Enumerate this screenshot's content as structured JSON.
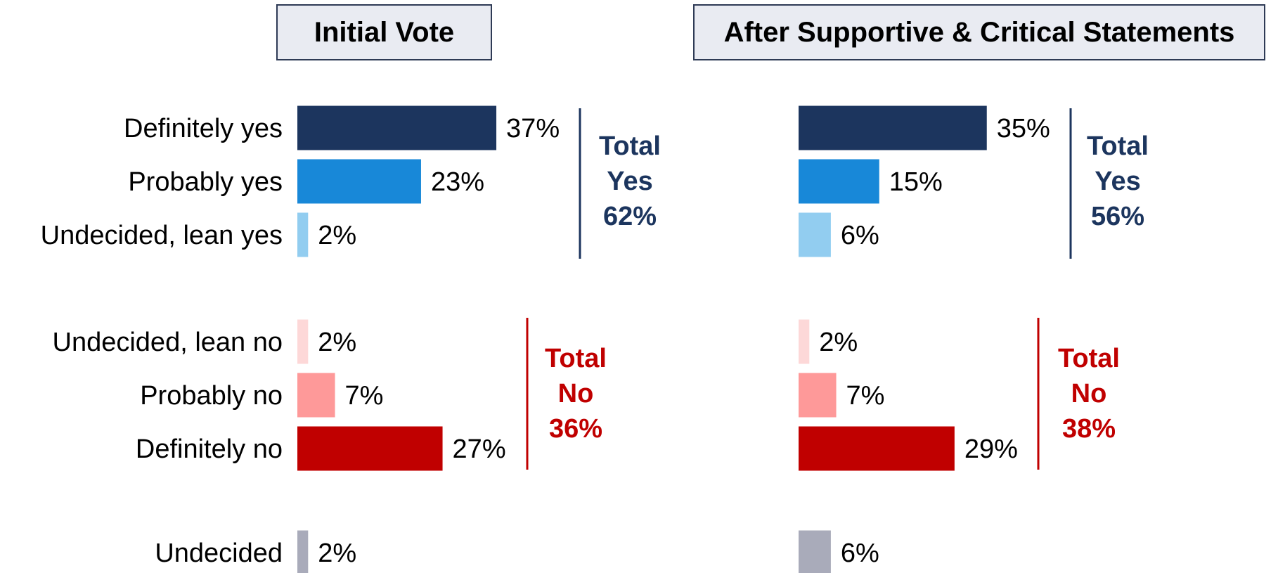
{
  "chart_data": [
    {
      "type": "bar",
      "orientation": "horizontal",
      "title": "Initial Vote",
      "categories": [
        "Definitely yes",
        "Probably yes",
        "Undecided, lean yes",
        "Undecided, lean no",
        "Probably no",
        "Definitely no",
        "Undecided"
      ],
      "values": [
        37,
        23,
        2,
        2,
        7,
        27,
        2
      ],
      "value_labels": [
        "37%",
        "23%",
        "2%",
        "2%",
        "7%",
        "27%",
        "2%"
      ],
      "colors": [
        "#1c355e",
        "#1888d8",
        "#92cdf0",
        "#fdd8d8",
        "#fe9999",
        "#c00000",
        "#a9abba"
      ],
      "groups": [
        {
          "name": "yes",
          "lines": [
            "Total",
            "Yes",
            "62%"
          ],
          "value": 62,
          "color": "#1c355e"
        },
        {
          "name": "no",
          "lines": [
            "Total",
            "No",
            "36%"
          ],
          "value": 36,
          "color": "#c00000"
        }
      ]
    },
    {
      "type": "bar",
      "orientation": "horizontal",
      "title": "After Supportive & Critical Statements",
      "categories": [
        "Definitely yes",
        "Probably yes",
        "Undecided, lean yes",
        "Undecided, lean no",
        "Probably no",
        "Definitely no",
        "Undecided"
      ],
      "values": [
        35,
        15,
        6,
        2,
        7,
        29,
        6
      ],
      "value_labels": [
        "35%",
        "15%",
        "6%",
        "2%",
        "7%",
        "29%",
        "6%"
      ],
      "colors": [
        "#1c355e",
        "#1888d8",
        "#92cdf0",
        "#fdd8d8",
        "#fe9999",
        "#c00000",
        "#a9abba"
      ],
      "groups": [
        {
          "name": "yes",
          "lines": [
            "Total",
            "Yes",
            "56%"
          ],
          "value": 56,
          "color": "#1c355e"
        },
        {
          "name": "no",
          "lines": [
            "Total",
            "No",
            "38%"
          ],
          "value": 38,
          "color": "#c00000"
        }
      ]
    }
  ]
}
